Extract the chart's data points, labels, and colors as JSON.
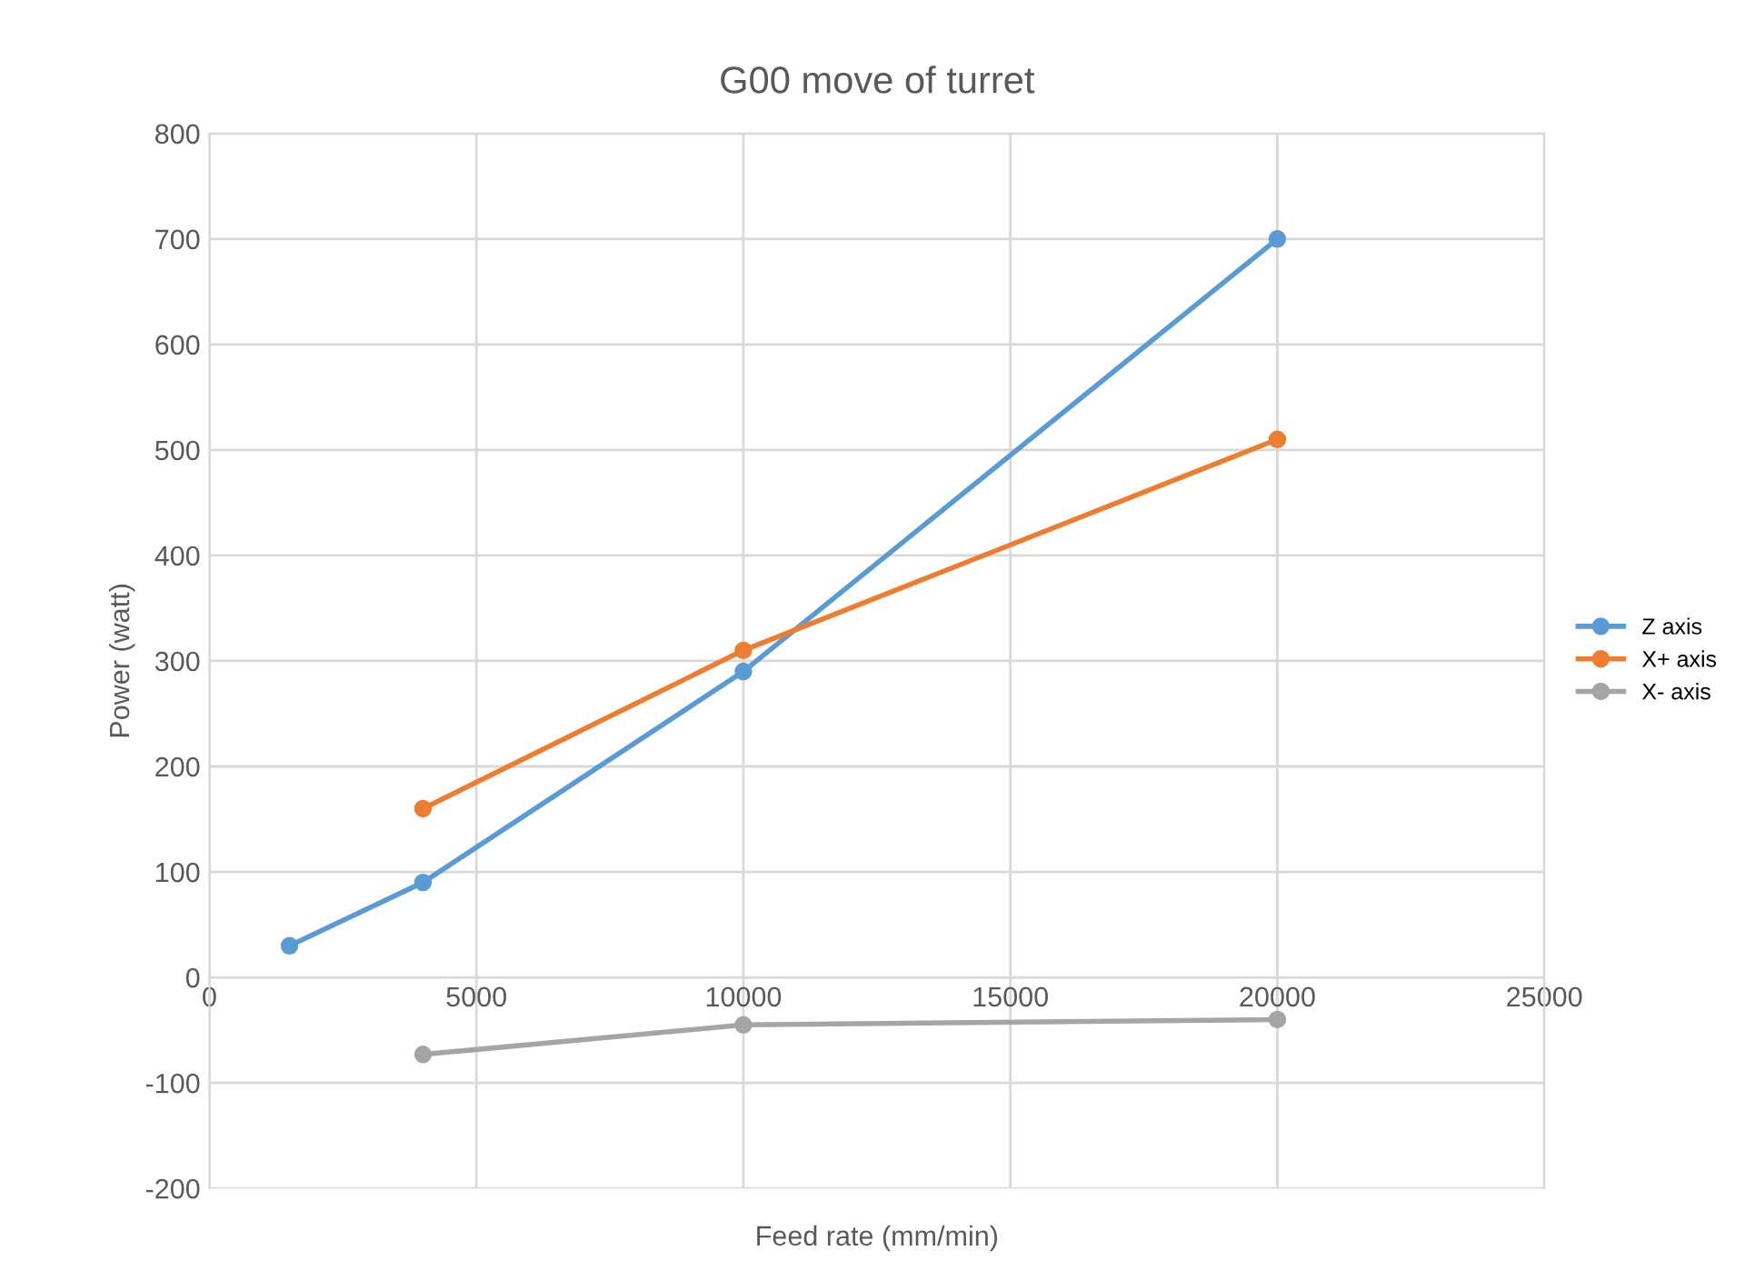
{
  "chart_data": {
    "type": "line",
    "title": "G00 move of turret",
    "xlabel": "Feed rate (mm/min)",
    "ylabel": "Power (watt)",
    "series": [
      {
        "name": "Z axis",
        "color": "#5b9bd5",
        "x": [
          1500,
          4000,
          10000,
          20000
        ],
        "values": [
          30,
          90,
          290,
          700
        ]
      },
      {
        "name": "X+ axis",
        "color": "#ed7d31",
        "x": [
          4000,
          10000,
          20000
        ],
        "values": [
          160,
          310,
          510
        ]
      },
      {
        "name": "X- axis",
        "color": "#a5a5a5",
        "x": [
          4000,
          10000,
          20000
        ],
        "values": [
          -73,
          -45,
          -40
        ]
      }
    ],
    "xlim": [
      0,
      25000
    ],
    "xticks": [
      0,
      5000,
      10000,
      15000,
      20000,
      25000
    ],
    "ylim": [
      -200,
      800
    ],
    "yticks": [
      -200,
      -100,
      0,
      100,
      200,
      300,
      400,
      500,
      600,
      700,
      800
    ],
    "grid": true,
    "legend": "right",
    "marker": "circle",
    "line_style": "solid"
  }
}
